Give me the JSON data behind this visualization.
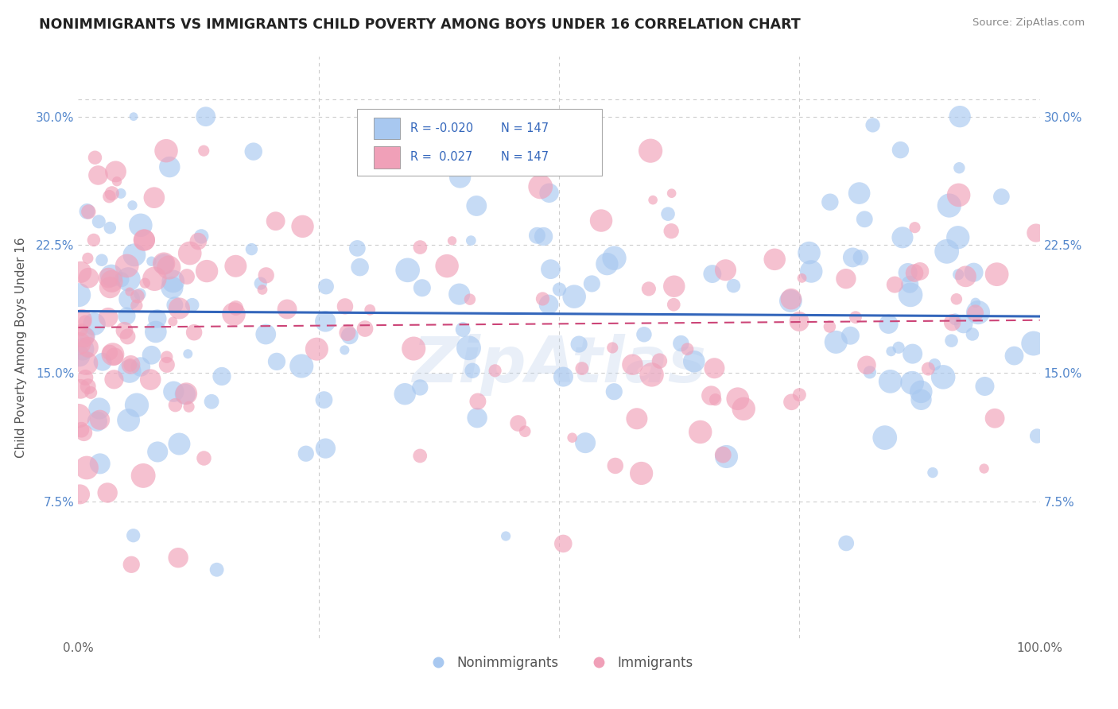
{
  "title": "NONIMMIGRANTS VS IMMIGRANTS CHILD POVERTY AMONG BOYS UNDER 16 CORRELATION CHART",
  "source": "Source: ZipAtlas.com",
  "ylabel": "Child Poverty Among Boys Under 16",
  "xlim": [
    0.0,
    1.0
  ],
  "ylim": [
    -0.005,
    0.335
  ],
  "legend_r_nonimm": "-0.020",
  "legend_r_imm": "0.027",
  "legend_n": "147",
  "color_nonimm": "#a8c8f0",
  "color_imm": "#f0a0b8",
  "trendline_nonimm": "#3366bb",
  "trendline_imm": "#cc4477",
  "background": "#ffffff",
  "title_color": "#222222",
  "axis_color": "#888888",
  "grid_color": "#cccccc",
  "right_label_color": "#5588cc",
  "source_color": "#888888"
}
